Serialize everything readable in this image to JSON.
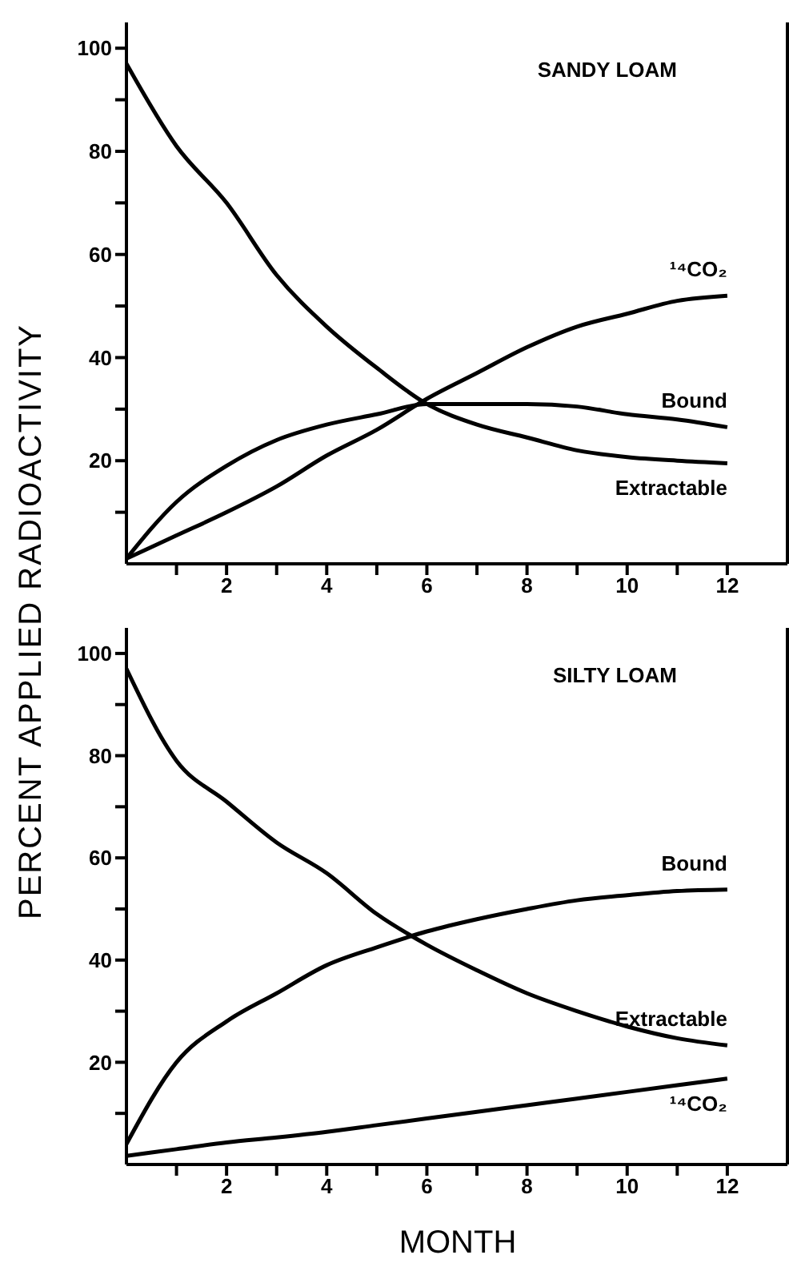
{
  "chart_data": [
    {
      "type": "line",
      "ylabel": "PERCENT APPLIED RADIOACTIVITY",
      "x": [
        0,
        1,
        2,
        3,
        4,
        5,
        6,
        7,
        8,
        9,
        10,
        11,
        12
      ],
      "series": [
        {
          "name": "Extractable",
          "color": "#000000",
          "values": [
            97,
            81,
            70,
            56,
            46,
            38,
            31,
            27,
            24.5,
            22,
            20.7,
            20,
            19.5
          ]
        },
        {
          "name": "Bound",
          "color": "#000000",
          "values": [
            1,
            12,
            19,
            24,
            27,
            29,
            31,
            31,
            31,
            30.5,
            29,
            28,
            26.5
          ]
        },
        {
          "name": "¹⁴CO₂",
          "color": "#000000",
          "values": [
            1,
            5.5,
            10,
            15,
            21,
            26,
            32,
            37,
            42,
            46,
            48.5,
            51,
            52
          ]
        }
      ],
      "xlim": [
        0,
        13.2
      ],
      "ylim": [
        0,
        105
      ],
      "xticks": [
        {
          "value": 1,
          "label": null
        },
        2,
        {
          "value": 3,
          "label": null
        },
        4,
        {
          "value": 5,
          "label": null
        },
        6,
        {
          "value": 7,
          "label": null
        },
        8,
        {
          "value": 9,
          "label": null
        },
        10,
        {
          "value": 11,
          "label": null
        },
        12
      ],
      "yticks": [
        {
          "value": 10,
          "label": null
        },
        20,
        {
          "value": 30,
          "label": null
        },
        40,
        {
          "value": 50,
          "label": null
        },
        60,
        {
          "value": 70,
          "label": null
        },
        80,
        {
          "value": 90,
          "label": null
        },
        100
      ],
      "annotations": [
        "SANDY LOAM"
      ]
    },
    {
      "type": "line",
      "xlabel": "MONTH",
      "x": [
        0,
        1,
        2,
        3,
        4,
        5,
        6,
        7,
        8,
        9,
        10,
        11,
        12
      ],
      "series": [
        {
          "name": "Extractable",
          "color": "#000000",
          "values": [
            97,
            79,
            71,
            63,
            57,
            49,
            43,
            38,
            33.5,
            30,
            27,
            24.7,
            23.3
          ]
        },
        {
          "name": "Bound",
          "color": "#000000",
          "values": [
            4,
            20,
            28,
            33.5,
            39,
            42.5,
            45.6,
            48,
            50,
            51.7,
            52.7,
            53.5,
            53.8
          ]
        },
        {
          "name": "¹⁴CO₂",
          "color": "#000000",
          "values": [
            1.7,
            3,
            4.3,
            5.3,
            6.4,
            7.7,
            9,
            10.3,
            11.6,
            12.9,
            14.2,
            15.5,
            16.8
          ]
        }
      ],
      "xlim": [
        0,
        13.2
      ],
      "ylim": [
        0,
        105
      ],
      "xticks": [
        {
          "value": 1,
          "label": null
        },
        2,
        {
          "value": 3,
          "label": null
        },
        4,
        {
          "value": 5,
          "label": null
        },
        6,
        {
          "value": 7,
          "label": null
        },
        8,
        {
          "value": 9,
          "label": null
        },
        10,
        {
          "value": 11,
          "label": null
        },
        12
      ],
      "yticks": [
        {
          "value": 10,
          "label": null
        },
        20,
        {
          "value": 30,
          "label": null
        },
        40,
        {
          "value": 50,
          "label": null
        },
        60,
        {
          "value": 70,
          "label": null
        },
        80,
        {
          "value": 90,
          "label": null
        },
        100
      ],
      "annotations": [
        "SILTY LOAM"
      ]
    }
  ]
}
